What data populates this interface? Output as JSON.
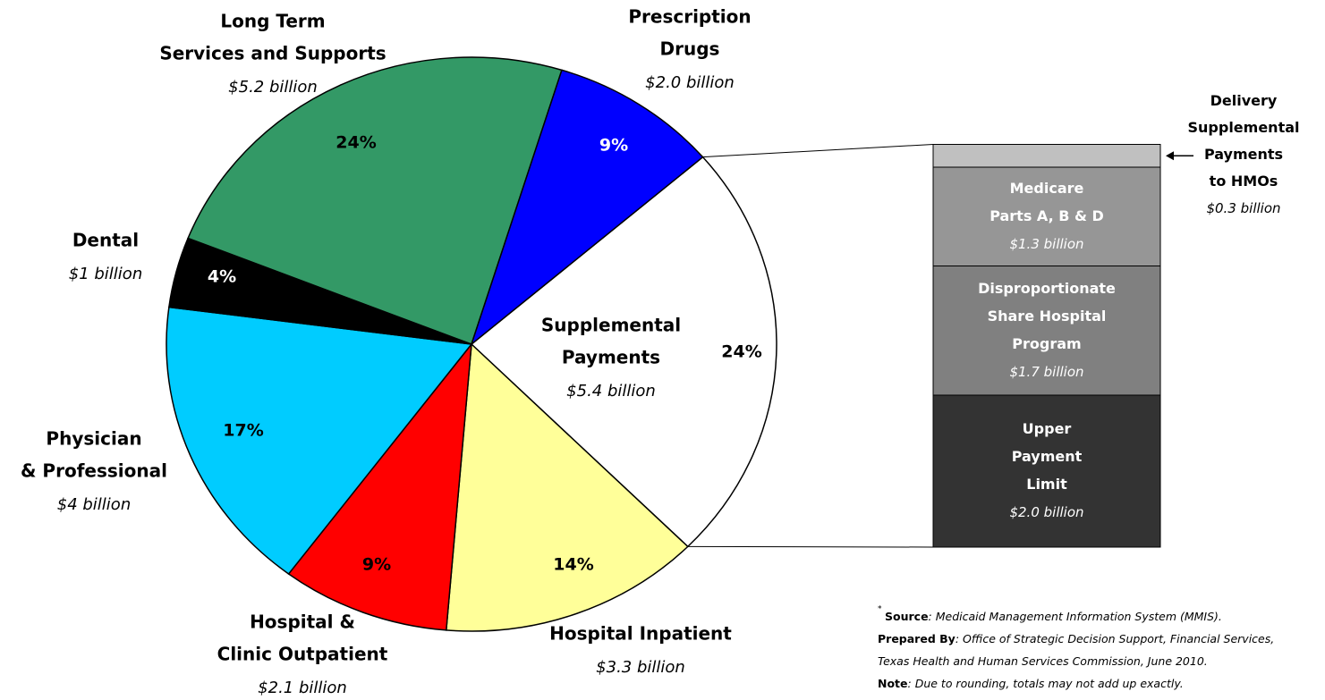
{
  "chart_data": {
    "type": "pie",
    "labels": [
      [
        "Supplemental",
        "Payments"
      ],
      [
        "Hospital Inpatient"
      ],
      [
        "Hospital &",
        "Clinic Outpatient"
      ],
      [
        "Physician",
        "& Professional"
      ],
      [
        "Dental"
      ],
      [
        "Long Term",
        "Services and Supports"
      ],
      [
        "Prescription",
        "Drugs"
      ]
    ],
    "amount_labels": [
      "$5.4 billion",
      "$3.3 billion",
      "$2.1 billion",
      "$4 billion",
      "$1 billion",
      "$5.2 billion",
      "$2.0 billion"
    ],
    "values": [
      24,
      14,
      9,
      17,
      4,
      24,
      9
    ],
    "value_labels": [
      "24%",
      "14%",
      "9%",
      "17%",
      "4%",
      "24%",
      "9%"
    ],
    "colors": [
      "#ffffff",
      "#ffff99",
      "#ff0000",
      "#00ccff",
      "#000000",
      "#339966",
      "#0000ff"
    ],
    "breakout": {
      "type": "stacked-bar",
      "labels": [
        [
          "Upper",
          "Payment",
          "Limit"
        ],
        [
          "Disproportionate",
          "Share Hospital",
          "Program"
        ],
        [
          "Medicare",
          "Parts A, B & D"
        ],
        [
          "Delivery",
          "Supplemental",
          "Payments",
          "to HMOs"
        ]
      ],
      "values": [
        2.0,
        1.7,
        1.3,
        0.3
      ],
      "value_labels": [
        "$2.0 billion",
        "$1.7 billion",
        "$1.3 billion",
        "$0.3 billion"
      ],
      "colors": [
        "#333333",
        "#808080",
        "#969696",
        "#c0c0c0"
      ]
    }
  },
  "footnote": {
    "marker": "*",
    "lines": [
      {
        "label": "Source",
        "text": ": Medicaid Management Information System (MMIS)."
      },
      {
        "label": "Prepared By",
        "text": ": Office of Strategic Decision Support, Financial Services,"
      },
      {
        "text": "Texas Health and Human Services Commission, June 2010."
      },
      {
        "label": "Note",
        "text": ": Due to rounding, totals may not add up exactly."
      }
    ]
  }
}
